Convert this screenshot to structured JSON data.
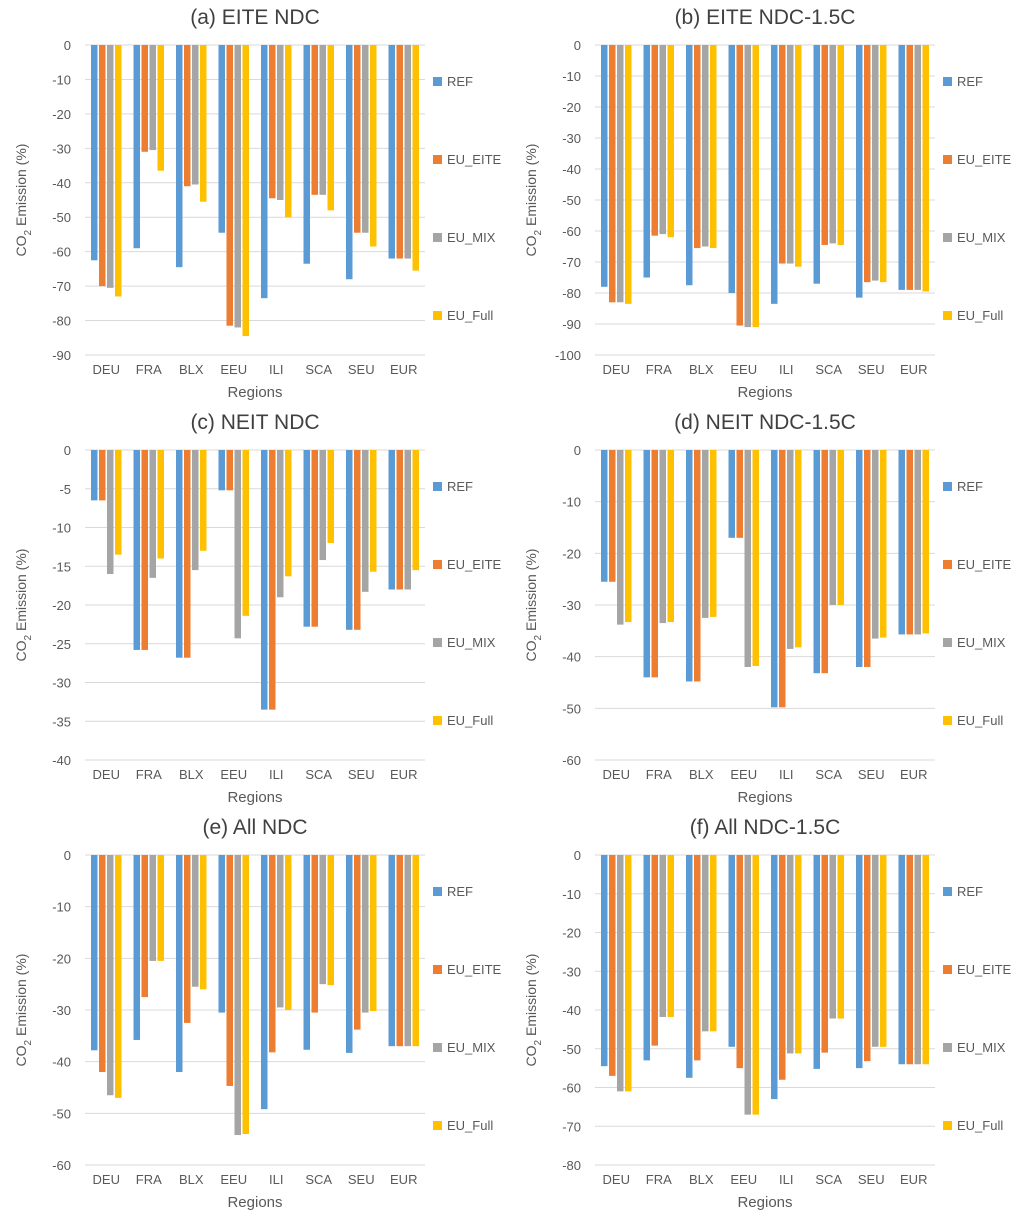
{
  "colors": {
    "REF": "#5B9BD5",
    "EU_EITE": "#ED7D31",
    "EU_MIX": "#A5A5A5",
    "EU_Full": "#FFC000",
    "grid": "#D9D9D9",
    "text": "#595959"
  },
  "chart_data": [
    {
      "type": "bar",
      "title": "(a) EITE NDC",
      "xlabel": "Regions",
      "ylabel": "CO2 Emission (%)",
      "ylim": [
        -90,
        0
      ],
      "ytick_step": 10,
      "yticks": [
        "0",
        "-10",
        "-20",
        "-30",
        "-40",
        "-50",
        "-60",
        "-70",
        "-80",
        "-90"
      ],
      "grid": true,
      "legend_position": "right",
      "categories": [
        "DEU",
        "FRA",
        "BLX",
        "EEU",
        "ILI",
        "SCA",
        "SEU",
        "EUR"
      ],
      "series": [
        {
          "name": "REF",
          "values": [
            -62.5,
            -59,
            -64.5,
            -54.5,
            -73.5,
            -63.5,
            -68,
            -62
          ]
        },
        {
          "name": "EU_EITE",
          "values": [
            -70,
            -31,
            -41,
            -81.5,
            -44.5,
            -43.5,
            -54.5,
            -62
          ]
        },
        {
          "name": "EU_MIX",
          "values": [
            -70.5,
            -30.5,
            -40.5,
            -82,
            -45,
            -43.5,
            -54.5,
            -62
          ]
        },
        {
          "name": "EU_Full",
          "values": [
            -73,
            -36.5,
            -45.5,
            -84.5,
            -50,
            -48,
            -58.5,
            -65.5
          ]
        }
      ]
    },
    {
      "type": "bar",
      "title": "(b) EITE NDC-1.5C",
      "xlabel": "Regions",
      "ylabel": "CO2 Emission (%)",
      "ylim": [
        -100,
        0
      ],
      "ytick_step": 10,
      "yticks": [
        "0",
        "-10",
        "-20",
        "-30",
        "-40",
        "-50",
        "-60",
        "-70",
        "-80",
        "-90",
        "-100"
      ],
      "grid": true,
      "legend_position": "right",
      "categories": [
        "DEU",
        "FRA",
        "BLX",
        "EEU",
        "ILI",
        "SCA",
        "SEU",
        "EUR"
      ],
      "series": [
        {
          "name": "REF",
          "values": [
            -78,
            -75,
            -77.5,
            -80,
            -83.5,
            -77,
            -81.5,
            -79
          ]
        },
        {
          "name": "EU_EITE",
          "values": [
            -83,
            -61.5,
            -65.5,
            -90.5,
            -70.5,
            -64.5,
            -76.5,
            -79
          ]
        },
        {
          "name": "EU_MIX",
          "values": [
            -83,
            -61,
            -65,
            -91,
            -70.5,
            -64,
            -76,
            -79
          ]
        },
        {
          "name": "EU_Full",
          "values": [
            -83.5,
            -62,
            -65.5,
            -91,
            -71.5,
            -64.5,
            -76.5,
            -79.5
          ]
        }
      ]
    },
    {
      "type": "bar",
      "title": "(c) NEIT NDC",
      "xlabel": "Regions",
      "ylabel": "CO2 Emission (%)",
      "ylim": [
        -40,
        0
      ],
      "ytick_step": 5,
      "yticks": [
        "0",
        "-5",
        "-10",
        "-15",
        "-20",
        "-25",
        "-30",
        "-35",
        "-40"
      ],
      "grid": true,
      "legend_position": "right",
      "categories": [
        "DEU",
        "FRA",
        "BLX",
        "EEU",
        "ILI",
        "SCA",
        "SEU",
        "EUR"
      ],
      "series": [
        {
          "name": "REF",
          "values": [
            -6.5,
            -25.8,
            -26.8,
            -5.2,
            -33.5,
            -22.8,
            -23.2,
            -18
          ]
        },
        {
          "name": "EU_EITE",
          "values": [
            -6.5,
            -25.8,
            -26.8,
            -5.2,
            -33.5,
            -22.8,
            -23.2,
            -18
          ]
        },
        {
          "name": "EU_MIX",
          "values": [
            -16,
            -16.5,
            -15.5,
            -24.3,
            -19,
            -14.2,
            -18.3,
            -18
          ]
        },
        {
          "name": "EU_Full",
          "values": [
            -13.5,
            -14,
            -13,
            -21.4,
            -16.3,
            -12,
            -15.7,
            -15.5
          ]
        }
      ]
    },
    {
      "type": "bar",
      "title": "(d) NEIT NDC-1.5C",
      "xlabel": "Regions",
      "ylabel": "CO2 Emission (%)",
      "ylim": [
        -60,
        0
      ],
      "ytick_step": 10,
      "yticks": [
        "0",
        "-10",
        "-20",
        "-30",
        "-40",
        "-50",
        "-60"
      ],
      "grid": true,
      "legend_position": "right",
      "categories": [
        "DEU",
        "FRA",
        "BLX",
        "EEU",
        "ILI",
        "SCA",
        "SEU",
        "EUR"
      ],
      "series": [
        {
          "name": "REF",
          "values": [
            -25.5,
            -44,
            -44.8,
            -17,
            -49.8,
            -43.2,
            -42,
            -35.7
          ]
        },
        {
          "name": "EU_EITE",
          "values": [
            -25.5,
            -44,
            -44.8,
            -17,
            -49.8,
            -43.2,
            -42,
            -35.7
          ]
        },
        {
          "name": "EU_MIX",
          "values": [
            -33.8,
            -33.5,
            -32.5,
            -42,
            -38.5,
            -30,
            -36.5,
            -35.7
          ]
        },
        {
          "name": "EU_Full",
          "values": [
            -33.3,
            -33.3,
            -32.3,
            -41.8,
            -38.2,
            -30,
            -36.3,
            -35.5
          ]
        }
      ]
    },
    {
      "type": "bar",
      "title": "(e) All NDC",
      "xlabel": "Regions",
      "ylabel": "CO2 Emission (%)",
      "ylim": [
        -60,
        0
      ],
      "ytick_step": 10,
      "yticks": [
        "0",
        "-10",
        "-20",
        "-30",
        "-40",
        "-50",
        "-60"
      ],
      "grid": true,
      "legend_position": "right",
      "categories": [
        "DEU",
        "FRA",
        "BLX",
        "EEU",
        "ILI",
        "SCA",
        "SEU",
        "EUR"
      ],
      "series": [
        {
          "name": "REF",
          "values": [
            -37.8,
            -35.8,
            -42,
            -30.5,
            -49.2,
            -37.7,
            -38.3,
            -37
          ]
        },
        {
          "name": "EU_EITE",
          "values": [
            -42,
            -27.5,
            -32.5,
            -44.7,
            -38.2,
            -30.5,
            -33.8,
            -37
          ]
        },
        {
          "name": "EU_MIX",
          "values": [
            -46.5,
            -20.5,
            -25.5,
            -54.2,
            -29.5,
            -25,
            -30.5,
            -37
          ]
        },
        {
          "name": "EU_Full",
          "values": [
            -47,
            -20.5,
            -26,
            -54,
            -30,
            -25.2,
            -30.2,
            -37
          ]
        }
      ]
    },
    {
      "type": "bar",
      "title": "(f) All NDC-1.5C",
      "xlabel": "Regions",
      "ylabel": "CO2 Emission (%)",
      "ylim": [
        -80,
        0
      ],
      "ytick_step": 10,
      "yticks": [
        "0",
        "-10",
        "-20",
        "-30",
        "-40",
        "-50",
        "-60",
        "-70",
        "-80"
      ],
      "grid": true,
      "legend_position": "right",
      "categories": [
        "DEU",
        "FRA",
        "BLX",
        "EEU",
        "ILI",
        "SCA",
        "SEU",
        "EUR"
      ],
      "series": [
        {
          "name": "REF",
          "values": [
            -54.5,
            -53,
            -57.5,
            -49.5,
            -63,
            -55.2,
            -55,
            -54
          ]
        },
        {
          "name": "EU_EITE",
          "values": [
            -57,
            -49.2,
            -53,
            -55,
            -58,
            -51,
            -53.2,
            -54
          ]
        },
        {
          "name": "EU_MIX",
          "values": [
            -61,
            -41.8,
            -45.5,
            -67,
            -51.2,
            -42.2,
            -49.5,
            -54
          ]
        },
        {
          "name": "EU_Full",
          "values": [
            -61,
            -41.8,
            -45.5,
            -67,
            -51.2,
            -42.2,
            -49.5,
            -54
          ]
        }
      ]
    }
  ]
}
